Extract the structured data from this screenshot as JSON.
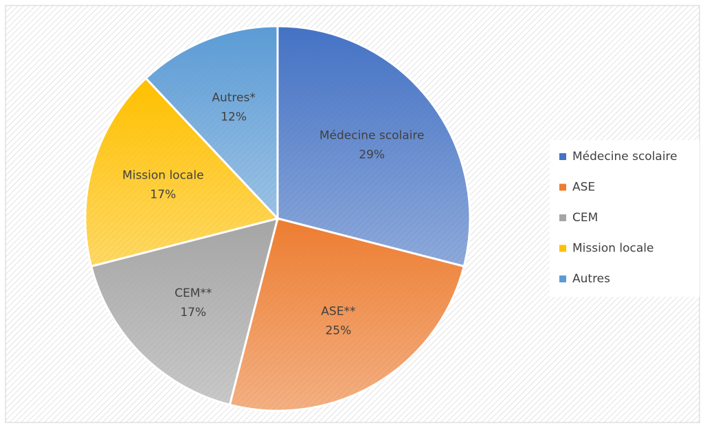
{
  "chart_data": {
    "type": "pie",
    "categories": [
      "Médecine scolaire",
      "ASE",
      "CEM",
      "Mission locale",
      "Autres"
    ],
    "values": [
      29,
      25,
      17,
      17,
      12
    ],
    "value_labels": [
      "29%",
      "25%",
      "17%",
      "17%",
      "12%"
    ],
    "slice_labels": [
      "Médecine scolaire",
      "ASE**",
      "CEM**",
      "Mission locale",
      "Autres*"
    ],
    "colors": [
      "#4472c4",
      "#ed7d31",
      "#a5a5a5",
      "#ffc000",
      "#5b9bd5"
    ],
    "legend": "right"
  }
}
